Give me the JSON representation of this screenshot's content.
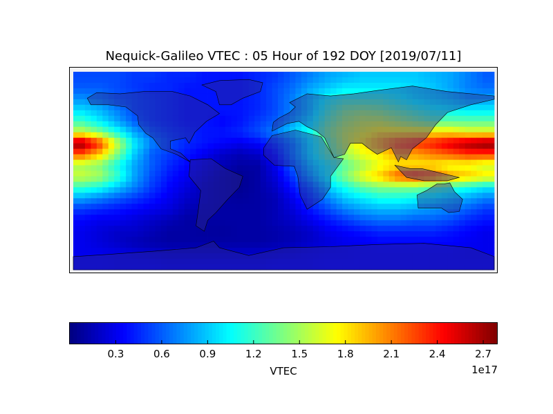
{
  "chart_data": {
    "type": "heatmap",
    "title": "Nequick-Galileo VTEC : 05 Hour of 192 DOY [2019/07/11]",
    "colormap": "jet",
    "colorbar": {
      "label": "VTEC",
      "multiplier": "1e17",
      "ticks": [
        "0.3",
        "0.6",
        "0.9",
        "1.2",
        "1.5",
        "1.8",
        "2.1",
        "2.4",
        "2.7"
      ],
      "range": [
        0.0,
        2.79
      ],
      "orientation": "horizontal"
    },
    "units_multiplier": 1e+17,
    "lon_range": [
      -180,
      180
    ],
    "lat_range": [
      -90,
      90
    ],
    "grid_lons": [
      -172.5,
      -157.5,
      -142.5,
      -127.5,
      -112.5,
      -97.5,
      -82.5,
      -67.5,
      -52.5,
      -37.5,
      -22.5,
      -7.5,
      7.5,
      22.5,
      37.5,
      52.5,
      67.5,
      82.5,
      97.5,
      112.5,
      127.5,
      142.5,
      157.5,
      172.5
    ],
    "grid_lats": [
      85,
      75,
      65,
      55,
      45,
      35,
      25,
      15,
      5,
      -5,
      -15,
      -25,
      -35,
      -45,
      -55,
      -65,
      -75,
      -85
    ],
    "values": [
      [
        0.55,
        0.55,
        0.55,
        0.5,
        0.5,
        0.45,
        0.45,
        0.4,
        0.4,
        0.4,
        0.45,
        0.5,
        0.6,
        0.7,
        0.8,
        0.85,
        0.9,
        0.9,
        0.9,
        0.9,
        0.85,
        0.8,
        0.7,
        0.6
      ],
      [
        0.6,
        0.6,
        0.55,
        0.5,
        0.45,
        0.45,
        0.4,
        0.4,
        0.4,
        0.4,
        0.45,
        0.55,
        0.65,
        0.8,
        0.9,
        1.0,
        1.0,
        1.0,
        1.0,
        0.95,
        0.9,
        0.8,
        0.7,
        0.65
      ],
      [
        0.75,
        0.7,
        0.6,
        0.55,
        0.5,
        0.45,
        0.4,
        0.4,
        0.4,
        0.4,
        0.45,
        0.55,
        0.7,
        0.9,
        1.1,
        1.2,
        1.2,
        1.2,
        1.1,
        1.0,
        0.95,
        0.9,
        0.8,
        0.8
      ],
      [
        0.95,
        0.85,
        0.7,
        0.55,
        0.5,
        0.45,
        0.4,
        0.4,
        0.4,
        0.4,
        0.45,
        0.55,
        0.7,
        0.9,
        1.2,
        1.4,
        1.45,
        1.4,
        1.3,
        1.2,
        1.1,
        1.05,
        1.0,
        1.0
      ],
      [
        1.2,
        1.0,
        0.8,
        0.6,
        0.5,
        0.45,
        0.4,
        0.4,
        0.35,
        0.4,
        0.5,
        0.6,
        0.8,
        1.0,
        1.3,
        1.5,
        1.6,
        1.6,
        1.5,
        1.4,
        1.3,
        1.3,
        1.3,
        1.3
      ],
      [
        1.6,
        1.4,
        1.1,
        0.8,
        0.6,
        0.5,
        0.45,
        0.4,
        0.4,
        0.45,
        0.55,
        0.7,
        0.9,
        1.1,
        1.4,
        1.6,
        1.7,
        1.8,
        1.8,
        1.8,
        1.8,
        1.8,
        1.7,
        1.7
      ],
      [
        2.75,
        2.3,
        1.6,
        1.0,
        0.7,
        0.55,
        0.45,
        0.4,
        0.35,
        0.3,
        0.35,
        0.5,
        0.7,
        1.0,
        1.3,
        1.6,
        1.8,
        2.0,
        2.2,
        2.3,
        2.4,
        2.55,
        2.7,
        2.78
      ],
      [
        2.2,
        1.9,
        1.4,
        0.9,
        0.6,
        0.5,
        0.4,
        0.3,
        0.2,
        0.15,
        0.2,
        0.4,
        0.7,
        1.0,
        1.3,
        1.5,
        1.7,
        1.8,
        2.0,
        2.0,
        2.1,
        2.2,
        2.3,
        2.3
      ],
      [
        1.5,
        1.4,
        1.1,
        0.8,
        0.6,
        0.45,
        0.35,
        0.25,
        0.15,
        0.1,
        0.1,
        0.3,
        0.6,
        0.9,
        1.1,
        1.3,
        1.5,
        1.7,
        1.8,
        1.8,
        1.8,
        1.7,
        1.7,
        1.6
      ],
      [
        1.6,
        1.5,
        1.2,
        0.8,
        0.55,
        0.4,
        0.3,
        0.2,
        0.1,
        0.05,
        0.1,
        0.25,
        0.5,
        0.8,
        1.1,
        1.4,
        1.7,
        1.9,
        2.2,
        2.3,
        2.2,
        2.0,
        1.9,
        1.8
      ],
      [
        1.2,
        1.1,
        0.9,
        0.7,
        0.5,
        0.35,
        0.25,
        0.15,
        0.1,
        0.05,
        0.1,
        0.2,
        0.4,
        0.6,
        0.9,
        1.1,
        1.3,
        1.4,
        1.4,
        1.4,
        1.3,
        1.2,
        1.1,
        1.0
      ],
      [
        0.8,
        0.7,
        0.6,
        0.5,
        0.4,
        0.3,
        0.2,
        0.15,
        0.1,
        0.08,
        0.1,
        0.15,
        0.3,
        0.5,
        0.7,
        0.9,
        1.0,
        1.1,
        1.1,
        1.05,
        1.0,
        0.9,
        0.8,
        0.7
      ],
      [
        0.5,
        0.45,
        0.4,
        0.35,
        0.3,
        0.25,
        0.15,
        0.12,
        0.1,
        0.1,
        0.1,
        0.15,
        0.25,
        0.4,
        0.55,
        0.7,
        0.8,
        0.85,
        0.85,
        0.8,
        0.75,
        0.7,
        0.6,
        0.5
      ],
      [
        0.35,
        0.3,
        0.3,
        0.25,
        0.2,
        0.15,
        0.1,
        0.1,
        0.1,
        0.1,
        0.1,
        0.15,
        0.2,
        0.3,
        0.4,
        0.5,
        0.6,
        0.65,
        0.65,
        0.6,
        0.6,
        0.55,
        0.45,
        0.4
      ],
      [
        0.3,
        0.25,
        0.2,
        0.2,
        0.15,
        0.1,
        0.1,
        0.08,
        0.08,
        0.1,
        0.1,
        0.12,
        0.15,
        0.2,
        0.3,
        0.35,
        0.4,
        0.45,
        0.45,
        0.45,
        0.45,
        0.4,
        0.35,
        0.3
      ],
      [
        0.3,
        0.25,
        0.2,
        0.15,
        0.12,
        0.1,
        0.1,
        0.1,
        0.1,
        0.1,
        0.1,
        0.12,
        0.15,
        0.2,
        0.25,
        0.3,
        0.32,
        0.35,
        0.35,
        0.35,
        0.35,
        0.35,
        0.32,
        0.3
      ],
      [
        0.3,
        0.3,
        0.28,
        0.25,
        0.22,
        0.2,
        0.2,
        0.2,
        0.2,
        0.2,
        0.2,
        0.22,
        0.25,
        0.28,
        0.3,
        0.3,
        0.32,
        0.32,
        0.32,
        0.32,
        0.32,
        0.32,
        0.3,
        0.3
      ],
      [
        0.32,
        0.32,
        0.3,
        0.3,
        0.3,
        0.28,
        0.28,
        0.28,
        0.28,
        0.28,
        0.28,
        0.3,
        0.3,
        0.3,
        0.32,
        0.32,
        0.32,
        0.32,
        0.32,
        0.32,
        0.32,
        0.32,
        0.32,
        0.32
      ]
    ]
  }
}
